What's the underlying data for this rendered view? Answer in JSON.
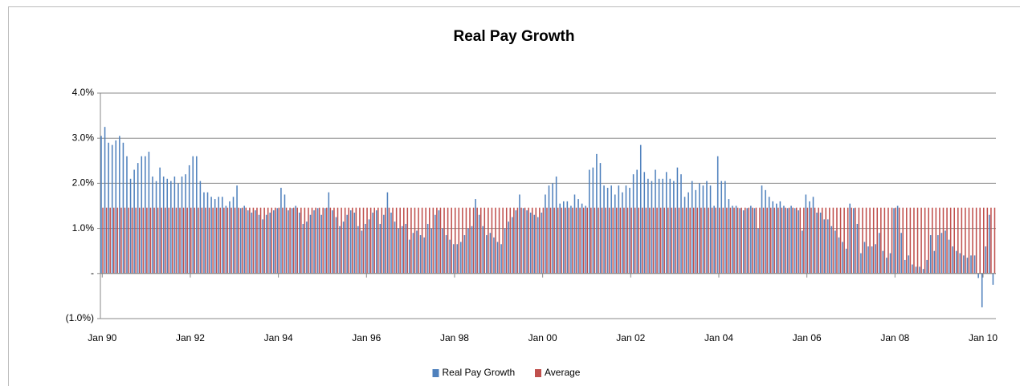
{
  "chart_data": {
    "type": "bar",
    "title": "Real Pay Growth",
    "categories": [
      "Jan 90",
      null,
      null,
      null,
      null,
      null,
      null,
      null,
      null,
      null,
      null,
      null,
      null,
      null,
      null,
      null,
      null,
      null,
      null,
      null,
      null,
      null,
      null,
      null,
      "Jan 92",
      null,
      null,
      null,
      null,
      null,
      null,
      null,
      null,
      null,
      null,
      null,
      null,
      null,
      null,
      null,
      null,
      null,
      null,
      null,
      null,
      null,
      null,
      null,
      "Jan 94",
      null,
      null,
      null,
      null,
      null,
      null,
      null,
      null,
      null,
      null,
      null,
      null,
      null,
      null,
      null,
      null,
      null,
      null,
      null,
      null,
      null,
      null,
      null,
      "Jan 96",
      null,
      null,
      null,
      null,
      null,
      null,
      null,
      null,
      null,
      null,
      null,
      null,
      null,
      null,
      null,
      null,
      null,
      null,
      null,
      null,
      null,
      null,
      null,
      "Jan 98",
      null,
      null,
      null,
      null,
      null,
      null,
      null,
      null,
      null,
      null,
      null,
      null,
      null,
      null,
      null,
      null,
      null,
      null,
      null,
      null,
      null,
      null,
      null,
      "Jan 00",
      null,
      null,
      null,
      null,
      null,
      null,
      null,
      null,
      null,
      null,
      null,
      null,
      null,
      null,
      null,
      null,
      null,
      null,
      null,
      null,
      null,
      null,
      null,
      "Jan 02",
      null,
      null,
      null,
      null,
      null,
      null,
      null,
      null,
      null,
      null,
      null,
      null,
      null,
      null,
      null,
      null,
      null,
      null,
      null,
      null,
      null,
      null,
      null,
      "Jan 04",
      null,
      null,
      null,
      null,
      null,
      null,
      null,
      null,
      null,
      null,
      null,
      null,
      null,
      null,
      null,
      null,
      null,
      null,
      null,
      null,
      null,
      null,
      null,
      "Jan 06",
      null,
      null,
      null,
      null,
      null,
      null,
      null,
      null,
      null,
      null,
      null,
      null,
      null,
      null,
      null,
      null,
      null,
      null,
      null,
      null,
      null,
      null,
      null,
      "Jan 08",
      null,
      null,
      null,
      null,
      null,
      null,
      null,
      null,
      null,
      null,
      null,
      null,
      null,
      null,
      null,
      null,
      null,
      null,
      null,
      null,
      null,
      null,
      null,
      "Jan 10",
      null,
      null,
      null
    ],
    "series": [
      {
        "name": "Real Pay Growth",
        "color": "#4f81bd",
        "values": [
          3.05,
          3.25,
          2.9,
          2.85,
          2.95,
          3.05,
          2.9,
          2.6,
          2.1,
          2.3,
          2.45,
          2.6,
          2.6,
          2.7,
          2.15,
          2.05,
          2.35,
          2.15,
          2.1,
          2.05,
          2.15,
          2.0,
          2.15,
          2.2,
          2.4,
          2.6,
          2.6,
          2.05,
          1.8,
          1.8,
          1.7,
          1.65,
          1.7,
          1.7,
          1.5,
          1.6,
          1.7,
          1.95,
          1.45,
          1.5,
          1.4,
          1.35,
          1.4,
          1.3,
          1.2,
          1.3,
          1.35,
          1.4,
          1.45,
          1.9,
          1.75,
          1.4,
          1.45,
          1.5,
          1.35,
          1.1,
          1.15,
          1.3,
          1.4,
          1.45,
          1.3,
          1.45,
          1.8,
          1.4,
          1.25,
          1.05,
          1.15,
          1.3,
          1.4,
          1.35,
          1.05,
          0.95,
          1.1,
          1.2,
          1.35,
          1.4,
          1.1,
          1.3,
          1.8,
          1.35,
          1.15,
          1.0,
          1.05,
          1.1,
          0.75,
          0.9,
          0.95,
          0.85,
          0.8,
          1.1,
          1.0,
          1.3,
          1.4,
          1.0,
          0.85,
          0.75,
          0.65,
          0.65,
          0.7,
          0.85,
          1.0,
          1.05,
          1.65,
          1.3,
          1.05,
          0.85,
          0.9,
          0.8,
          0.7,
          0.65,
          1.0,
          1.15,
          1.25,
          1.4,
          1.75,
          1.45,
          1.4,
          1.35,
          1.3,
          1.25,
          1.35,
          1.75,
          1.95,
          2.0,
          2.15,
          1.55,
          1.6,
          1.6,
          1.5,
          1.75,
          1.65,
          1.55,
          1.5,
          2.3,
          2.35,
          2.65,
          2.45,
          1.95,
          1.9,
          1.95,
          1.75,
          1.95,
          1.8,
          1.95,
          1.9,
          2.2,
          2.3,
          2.85,
          2.25,
          2.1,
          2.05,
          2.3,
          2.1,
          2.1,
          2.25,
          2.1,
          2.05,
          2.35,
          2.2,
          1.7,
          1.8,
          2.05,
          1.85,
          2.0,
          1.95,
          2.05,
          1.95,
          1.5,
          2.6,
          2.05,
          2.05,
          1.65,
          1.5,
          1.5,
          1.45,
          1.4,
          1.45,
          1.5,
          1.45,
          1.0,
          1.95,
          1.85,
          1.7,
          1.6,
          1.55,
          1.6,
          1.5,
          1.45,
          1.5,
          1.45,
          1.4,
          0.95,
          1.75,
          1.6,
          1.7,
          1.35,
          1.35,
          1.2,
          1.2,
          1.05,
          0.95,
          0.8,
          0.7,
          0.55,
          1.55,
          1.45,
          1.1,
          0.45,
          0.7,
          0.6,
          0.6,
          0.65,
          0.9,
          0.5,
          0.35,
          0.45,
          1.45,
          1.5,
          0.9,
          0.3,
          0.4,
          0.2,
          0.15,
          0.15,
          0.1,
          0.3,
          0.85,
          0.5,
          0.85,
          0.9,
          0.95,
          0.75,
          0.6,
          0.5,
          0.45,
          0.4,
          0.35,
          0.4,
          0.4,
          -0.1,
          -0.75,
          0.6,
          1.3,
          -0.25
        ]
      },
      {
        "name": "Average",
        "color": "#c0504d",
        "values": [
          1.46,
          1.46,
          1.46,
          1.46,
          1.46,
          1.46,
          1.46,
          1.46,
          1.46,
          1.46,
          1.46,
          1.46,
          1.46,
          1.46,
          1.46,
          1.46,
          1.46,
          1.46,
          1.46,
          1.46,
          1.46,
          1.46,
          1.46,
          1.46,
          1.46,
          1.46,
          1.46,
          1.46,
          1.46,
          1.46,
          1.46,
          1.46,
          1.46,
          1.46,
          1.46,
          1.46,
          1.46,
          1.46,
          1.46,
          1.46,
          1.46,
          1.46,
          1.46,
          1.46,
          1.46,
          1.46,
          1.46,
          1.46,
          1.46,
          1.46,
          1.46,
          1.46,
          1.46,
          1.46,
          1.46,
          1.46,
          1.46,
          1.46,
          1.46,
          1.46,
          1.46,
          1.46,
          1.46,
          1.46,
          1.46,
          1.46,
          1.46,
          1.46,
          1.46,
          1.46,
          1.46,
          1.46,
          1.46,
          1.46,
          1.46,
          1.46,
          1.46,
          1.46,
          1.46,
          1.46,
          1.46,
          1.46,
          1.46,
          1.46,
          1.46,
          1.46,
          1.46,
          1.46,
          1.46,
          1.46,
          1.46,
          1.46,
          1.46,
          1.46,
          1.46,
          1.46,
          1.46,
          1.46,
          1.46,
          1.46,
          1.46,
          1.46,
          1.46,
          1.46,
          1.46,
          1.46,
          1.46,
          1.46,
          1.46,
          1.46,
          1.46,
          1.46,
          1.46,
          1.46,
          1.46,
          1.46,
          1.46,
          1.46,
          1.46,
          1.46,
          1.46,
          1.46,
          1.46,
          1.46,
          1.46,
          1.46,
          1.46,
          1.46,
          1.46,
          1.46,
          1.46,
          1.46,
          1.46,
          1.46,
          1.46,
          1.46,
          1.46,
          1.46,
          1.46,
          1.46,
          1.46,
          1.46,
          1.46,
          1.46,
          1.46,
          1.46,
          1.46,
          1.46,
          1.46,
          1.46,
          1.46,
          1.46,
          1.46,
          1.46,
          1.46,
          1.46,
          1.46,
          1.46,
          1.46,
          1.46,
          1.46,
          1.46,
          1.46,
          1.46,
          1.46,
          1.46,
          1.46,
          1.46,
          1.46,
          1.46,
          1.46,
          1.46,
          1.46,
          1.46,
          1.46,
          1.46,
          1.46,
          1.46,
          1.46,
          1.46,
          1.46,
          1.46,
          1.46,
          1.46,
          1.46,
          1.46,
          1.46,
          1.46,
          1.46,
          1.46,
          1.46,
          1.46,
          1.46,
          1.46,
          1.46,
          1.46,
          1.46,
          1.46,
          1.46,
          1.46,
          1.46,
          1.46,
          1.46,
          1.46,
          1.46,
          1.46,
          1.46,
          1.46,
          1.46,
          1.46,
          1.46,
          1.46,
          1.46,
          1.46,
          1.46,
          1.46,
          1.46,
          1.46,
          1.46,
          1.46,
          1.46,
          1.46,
          1.46,
          1.46,
          1.46,
          1.46,
          1.46,
          1.46,
          1.46,
          1.46,
          1.46,
          1.46,
          1.46,
          1.46,
          1.46,
          1.46,
          1.46,
          1.46,
          1.46,
          1.46,
          1.46,
          1.46,
          1.46,
          1.46
        ]
      }
    ],
    "ylim": [
      -1,
      4
    ],
    "yticks": [
      {
        "value": -1,
        "label": "(1.0%)"
      },
      {
        "value": 0,
        "label": "-"
      },
      {
        "value": 1,
        "label": "1.0%"
      },
      {
        "value": 2,
        "label": "2.0%"
      },
      {
        "value": 3,
        "label": "3.0%"
      },
      {
        "value": 4,
        "label": "4.0%"
      }
    ],
    "grid": true,
    "legend": "bottom"
  }
}
